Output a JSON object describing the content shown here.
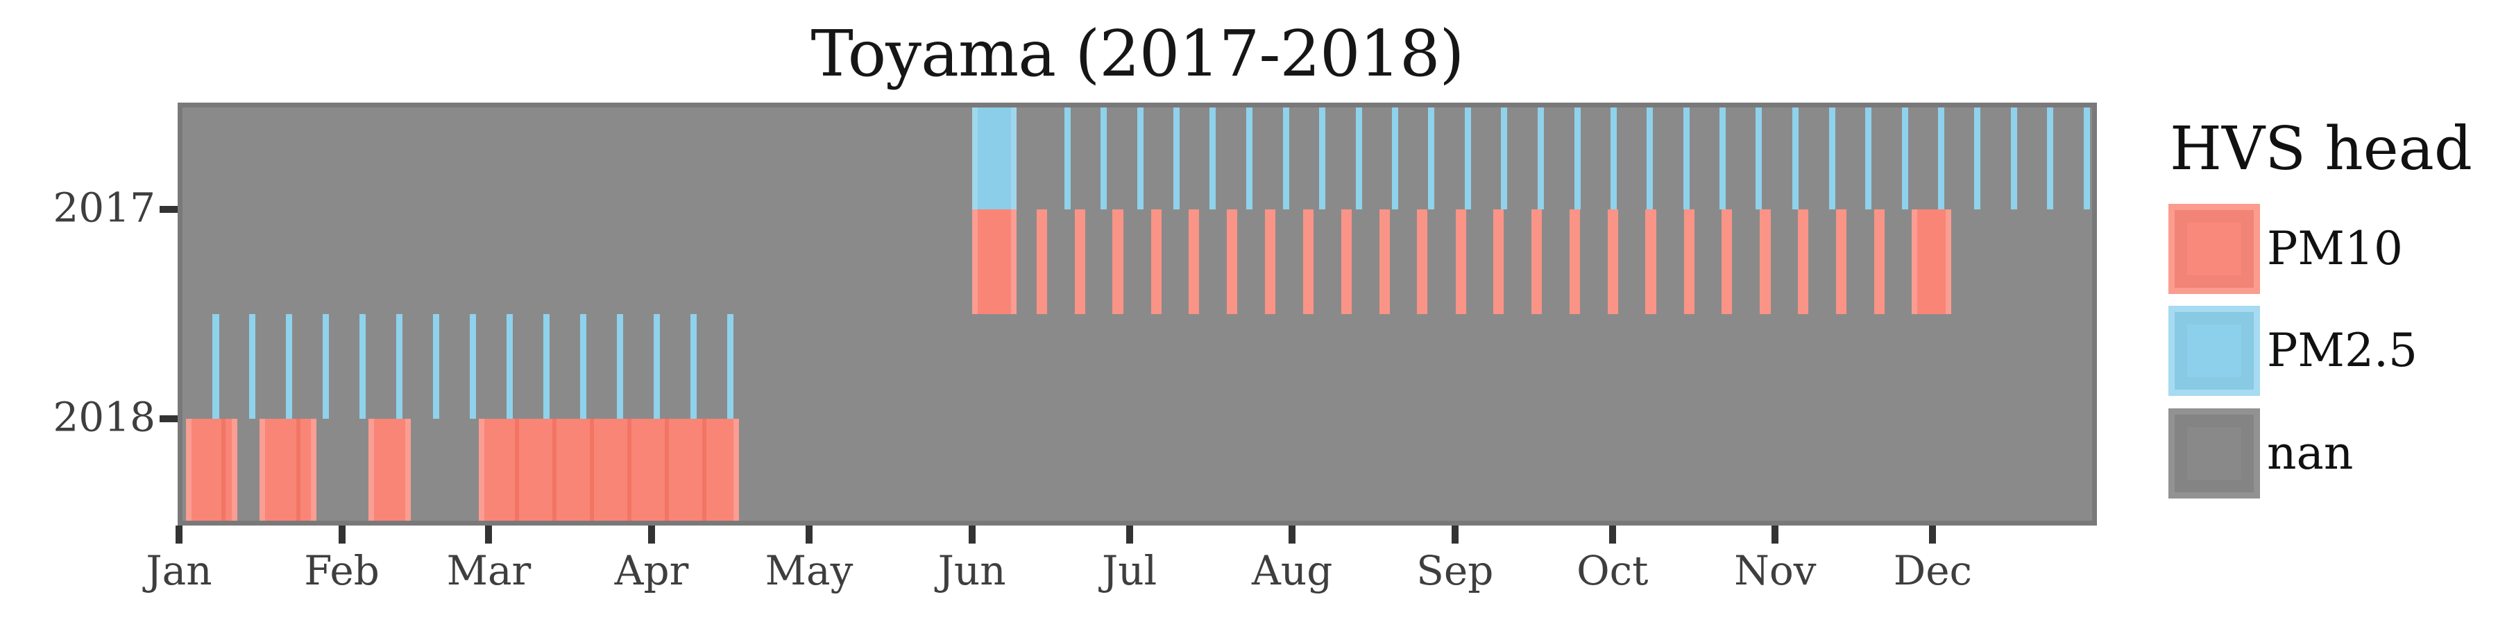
{
  "chart_data": {
    "type": "heatmap",
    "title": "Toyama (2017-2018)",
    "subtitle": "",
    "x_axis": {
      "tick_labels": [
        "Jan",
        "Feb",
        "Mar",
        "Apr",
        "May",
        "Jun",
        "Jul",
        "Aug",
        "Sep",
        "Oct",
        "Nov",
        "Dec"
      ],
      "tick_day_of_year": [
        0,
        31,
        59,
        90,
        120,
        151,
        181,
        212,
        243,
        273,
        304,
        334
      ],
      "range_days": [
        0,
        365
      ],
      "grid": "off"
    },
    "y_axis": {
      "tick_labels": [
        "2017",
        "2018"
      ],
      "grid": "off"
    },
    "legend": {
      "title": "HVS head",
      "position": "right",
      "entries": [
        {
          "label": "PM10",
          "color": "#F9897B",
          "edge_color": "#FB9C8F"
        },
        {
          "label": "PM2.5",
          "color": "#8DD0EB",
          "edge_color": "#A6DBF1"
        },
        {
          "label": "nan",
          "color": "#8A8989",
          "edge_color": "#939292"
        }
      ]
    },
    "series": [
      {
        "year": "2017",
        "head": "PM2.5",
        "kind": "block",
        "start_day": 151.0,
        "end_day": 159.5,
        "seams": []
      },
      {
        "year": "2017",
        "head": "PM2.5",
        "kind": "ticks",
        "tick_width_days": 1.2,
        "day_centers": [
          169.2,
          176.1,
          183.1,
          190.0,
          196.9,
          203.9,
          210.8,
          217.7,
          224.7,
          231.6,
          238.5,
          245.5,
          252.4,
          259.3,
          266.3,
          273.2,
          280.1,
          287.1,
          294.0,
          300.9,
          307.9,
          314.8,
          321.7,
          328.7,
          335.6,
          342.5,
          349.5,
          356.4,
          363.3
        ]
      },
      {
        "year": "2017",
        "head": "PM10",
        "kind": "block",
        "start_day": 151.0,
        "end_day": 159.5,
        "seams": []
      },
      {
        "year": "2017",
        "head": "PM10",
        "kind": "ticks",
        "tick_width_days": 2.0,
        "day_centers": [
          164.3,
          171.6,
          178.8,
          186.1,
          193.3,
          200.6,
          207.8,
          215.1,
          222.3,
          229.6,
          236.8,
          244.1,
          251.3,
          258.6,
          265.8,
          273.1,
          280.3,
          287.6,
          294.8,
          302.1,
          309.3,
          316.6,
          323.8
        ]
      },
      {
        "year": "2017",
        "head": "PM10",
        "kind": "block",
        "start_day": 330.0,
        "end_day": 337.5,
        "seams": []
      },
      {
        "year": "2018",
        "head": "PM2.5",
        "kind": "ticks",
        "tick_width_days": 1.2,
        "day_centers": [
          7,
          14,
          21,
          28,
          35,
          42,
          49,
          56,
          63,
          70,
          77,
          84,
          91,
          98,
          105
        ]
      },
      {
        "year": "2018",
        "head": "PM10",
        "kind": "block",
        "start_day": 1.3,
        "end_day": 11.1,
        "seams": [
          8.5
        ]
      },
      {
        "year": "2018",
        "head": "PM10",
        "kind": "block",
        "start_day": 15.3,
        "end_day": 26.2,
        "seams": [
          22.7
        ]
      },
      {
        "year": "2018",
        "head": "PM10",
        "kind": "block",
        "start_day": 36.1,
        "end_day": 44.1,
        "seams": []
      },
      {
        "year": "2018",
        "head": "PM10",
        "kind": "block",
        "start_day": 57.1,
        "end_day": 106.6,
        "seams": [
          64.3,
          71.5,
          78.6,
          85.8,
          92.9,
          100.1
        ]
      }
    ],
    "colors": {
      "pm10_block": "#F98577",
      "pm10_tick": "#FA9487",
      "pm10_seam": "rgba(225,75,55,0.28)",
      "pm25_block": "#8ACEE9",
      "pm25_tick": "#8FD2EC",
      "panel_bg": "#8B8A8A",
      "panel_border": "#7A7979",
      "axis_tick": "#333333",
      "axis_text": "#3E3E3E"
    }
  }
}
